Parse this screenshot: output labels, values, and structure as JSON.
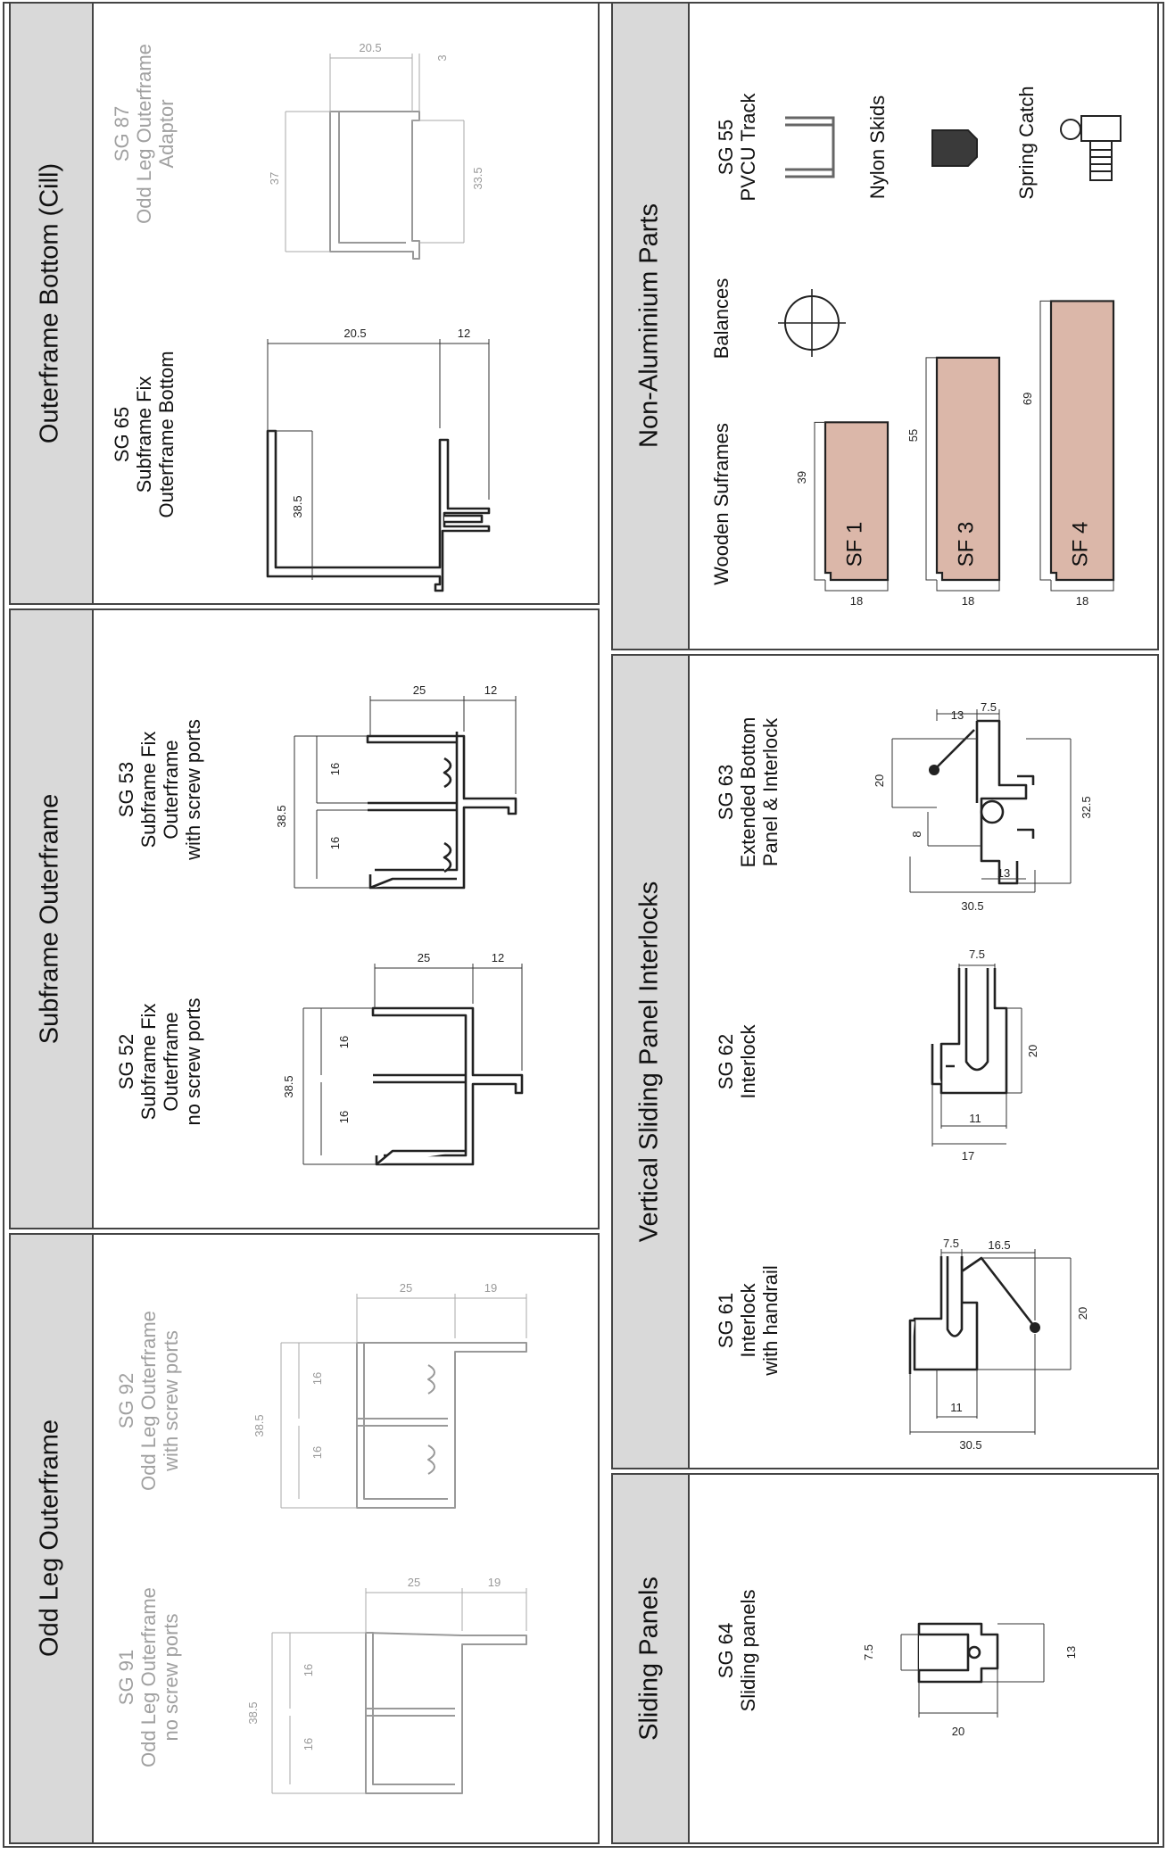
{
  "panels": {
    "odd_leg": {
      "title": "Odd Leg Outerframe",
      "items": [
        {
          "code": "SG 91",
          "lines": [
            "Odd Leg Outerframe",
            "no screw ports"
          ]
        },
        {
          "code": "SG 92",
          "lines": [
            "Odd Leg Outerframe",
            "with screw ports"
          ]
        }
      ],
      "dims_91": {
        "width": "25",
        "leg": "19",
        "height": "38.5",
        "chamber_1": "16",
        "chamber_2": "16"
      },
      "dims_92": {
        "width": "25",
        "leg": "19",
        "height": "38.5",
        "chamber_1": "16",
        "chamber_2": "16"
      }
    },
    "subframe": {
      "title": "Subframe Outerframe",
      "items": [
        {
          "code": "SG 52",
          "lines": [
            "Subframe Fix",
            "Outerframe",
            "no screw ports"
          ]
        },
        {
          "code": "SG 53",
          "lines": [
            "Subframe Fix",
            "Outerframe",
            "with screw ports"
          ]
        }
      ],
      "dims_52": {
        "width": "25",
        "leg": "12",
        "height": "38.5",
        "chamber_1": "16",
        "chamber_2": "16"
      },
      "dims_53": {
        "width": "25",
        "leg": "12",
        "height": "38.5",
        "chamber_1": "16",
        "chamber_2": "16"
      }
    },
    "outerframe_bottom": {
      "title": "Outerframe Bottom (Cill)",
      "items": [
        {
          "code": "SG 65",
          "lines": [
            "Subframe Fix",
            "Outerframe Bottom"
          ]
        },
        {
          "code": "SG 87",
          "lines": [
            "Odd Leg Outerframe",
            "Adaptor"
          ]
        }
      ],
      "dims_65": {
        "width": "20.5",
        "leg": "12",
        "height": "38.5"
      },
      "dims_87": {
        "width": "20.5",
        "lip": "3",
        "height": "37",
        "inner_height": "33.5"
      }
    },
    "sliding": {
      "title": "Sliding Panels",
      "items": [
        {
          "code": "SG 64",
          "lines": [
            "Sliding panels"
          ]
        }
      ],
      "dims_64": {
        "depth": "7.5",
        "height": "13",
        "width": "20"
      }
    },
    "interlocks": {
      "title": "Vertical Sliding Panel Interlocks",
      "items": [
        {
          "code": "SG 61",
          "lines": [
            "Interlock",
            "with handrail"
          ]
        },
        {
          "code": "SG 62",
          "lines": [
            "Interlock"
          ]
        },
        {
          "code": "SG 63",
          "lines": [
            "Extended Bottom",
            "Panel & Interlock"
          ]
        }
      ],
      "dims_61": {
        "glass": "7.5",
        "rail": "16.5",
        "height": "20",
        "inner": "11",
        "width": "30.5"
      },
      "dims_62": {
        "glass": "7.5",
        "height": "20",
        "inner": "11",
        "width": "17"
      },
      "dims_63": {
        "rail": "13",
        "glass": "7.5",
        "upper": "20",
        "overall": "32.5",
        "step": "8",
        "inner": "13",
        "width": "30.5"
      }
    },
    "non_aluminium": {
      "title": "Non-Aluminium Parts",
      "wooden": {
        "label": "Wooden Suframes",
        "items": [
          {
            "code": "SF 1",
            "height": "39",
            "width": "18",
            "h_mm": 39
          },
          {
            "code": "SF 3",
            "height": "55",
            "width": "18",
            "h_mm": 55
          },
          {
            "code": "SF 4",
            "height": "69",
            "width": "18",
            "h_mm": 69
          }
        ]
      },
      "balances": {
        "label": "Balances"
      },
      "track": {
        "lines": [
          "SG 55",
          "PVCU Track"
        ]
      },
      "skids": {
        "label": "Nylon Skids"
      },
      "catch": {
        "label": "Spring Catch"
      },
      "colors": {
        "wood": "#dbb7a9",
        "skid": "#3a3a3a",
        "header": "#d9d9d9"
      }
    }
  }
}
